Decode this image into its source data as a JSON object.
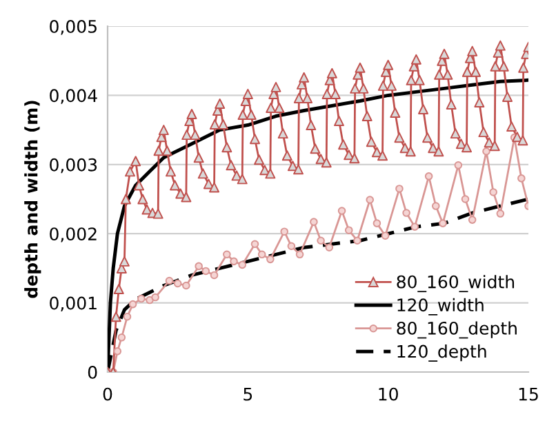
{
  "chart_data": {
    "type": "line",
    "ylabel": "depth and width (m)",
    "xlim": [
      0,
      15
    ],
    "xticks": [
      0,
      5,
      10,
      15
    ],
    "ylim": [
      0,
      0.005
    ],
    "yticks": [
      {
        "value": 0,
        "label": "0"
      },
      {
        "value": 0.001,
        "label": "0,001"
      },
      {
        "value": 0.002,
        "label": "0,002"
      },
      {
        "value": 0.003,
        "label": "0,003"
      },
      {
        "value": 0.004,
        "label": "0,004"
      },
      {
        "value": 0.005,
        "label": "0,005"
      }
    ],
    "grid": "y",
    "legend": "bottom right",
    "series": [
      {
        "name": "80_160_width",
        "color": "#c0504d",
        "marker": "triangle",
        "line_style": "solid",
        "x": [
          0,
          0.2,
          0.3,
          0.4,
          0.5,
          0.6,
          0.65,
          0.8,
          1.0,
          1.12,
          1.25,
          1.4,
          1.6,
          1.8,
          1.82,
          1.92,
          2,
          2.12,
          2.25,
          2.4,
          2.6,
          2.8,
          2.82,
          2.92,
          3,
          3.12,
          3.25,
          3.4,
          3.6,
          3.8,
          3.82,
          3.92,
          4,
          4.12,
          4.25,
          4.4,
          4.6,
          4.8,
          4.82,
          4.92,
          5,
          5.12,
          5.25,
          5.4,
          5.6,
          5.8,
          5.82,
          5.92,
          6,
          6.12,
          6.25,
          6.4,
          6.6,
          6.8,
          6.82,
          6.92,
          7,
          7.12,
          7.25,
          7.4,
          7.6,
          7.8,
          7.82,
          7.92,
          8,
          8.12,
          8.25,
          8.4,
          8.6,
          8.8,
          8.82,
          8.92,
          9,
          9.12,
          9.25,
          9.4,
          9.6,
          9.8,
          9.82,
          9.92,
          10,
          10.12,
          10.25,
          10.4,
          10.6,
          10.8,
          10.82,
          10.92,
          11,
          11.12,
          11.25,
          11.4,
          11.6,
          11.8,
          11.82,
          11.92,
          12,
          12.12,
          12.25,
          12.4,
          12.6,
          12.8,
          12.82,
          12.92,
          13,
          13.12,
          13.25,
          13.4,
          13.6,
          13.8,
          13.82,
          13.92,
          14,
          14.12,
          14.25,
          14.4,
          14.6,
          14.8,
          14.82,
          14.92,
          15
        ],
        "values": [
          0,
          0,
          0.0008,
          0.0012,
          0.0015,
          0.0016,
          0.0025,
          0.0029,
          0.00305,
          0.0027,
          0.0025,
          0.00235,
          0.0023,
          0.00229,
          0.0032,
          0.0034,
          0.0035,
          0.0032,
          0.0029,
          0.0027,
          0.00258,
          0.00253,
          0.00343,
          0.00363,
          0.00373,
          0.00343,
          0.0031,
          0.00287,
          0.00272,
          0.00267,
          0.00358,
          0.00378,
          0.00388,
          0.00358,
          0.00325,
          0.00299,
          0.00284,
          0.00279,
          0.00372,
          0.00392,
          0.00402,
          0.00372,
          0.00337,
          0.00307,
          0.00292,
          0.00287,
          0.00382,
          0.00402,
          0.00412,
          0.00382,
          0.00345,
          0.00313,
          0.00298,
          0.00293,
          0.00396,
          0.00416,
          0.00426,
          0.00396,
          0.00357,
          0.00323,
          0.00308,
          0.00303,
          0.00402,
          0.00422,
          0.00432,
          0.00402,
          0.00363,
          0.00329,
          0.00314,
          0.00309,
          0.0041,
          0.0043,
          0.0044,
          0.0041,
          0.0037,
          0.00333,
          0.00318,
          0.00313,
          0.00414,
          0.00434,
          0.00444,
          0.00414,
          0.00375,
          0.00339,
          0.00324,
          0.00319,
          0.00422,
          0.00442,
          0.00452,
          0.00422,
          0.0038,
          0.00339,
          0.00324,
          0.00319,
          0.0043,
          0.0045,
          0.0046,
          0.0043,
          0.00387,
          0.00345,
          0.0033,
          0.00325,
          0.00434,
          0.00454,
          0.00464,
          0.00434,
          0.0039,
          0.00347,
          0.00332,
          0.00327,
          0.00442,
          0.00462,
          0.00472,
          0.00442,
          0.00398,
          0.00355,
          0.0034,
          0.00335,
          0.0044,
          0.0046,
          0.0047
        ]
      },
      {
        "name": "120_width",
        "color": "#000000",
        "line_style": "solid",
        "x": [
          0,
          0.1,
          0.2,
          0.35,
          0.6,
          1,
          1.5,
          2,
          3,
          4,
          5,
          6,
          7,
          8,
          9,
          10,
          11,
          12,
          13,
          14,
          15
        ],
        "values": [
          0,
          0.001,
          0.0015,
          0.002,
          0.0024,
          0.0027,
          0.0029,
          0.0031,
          0.0033,
          0.0035,
          0.00357,
          0.0037,
          0.00378,
          0.00385,
          0.00392,
          0.004,
          0.00405,
          0.0041,
          0.00415,
          0.0042,
          0.00422
        ]
      },
      {
        "name": "80_160_depth",
        "color": "#d99694",
        "marker": "circle",
        "line_style": "solid",
        "x": [
          0,
          0.2,
          0.35,
          0.5,
          0.7,
          0.9,
          1.2,
          1.5,
          1.7,
          2.2,
          2.5,
          2.8,
          3.25,
          3.5,
          3.8,
          4.25,
          4.5,
          4.8,
          5.25,
          5.5,
          5.8,
          6.3,
          6.55,
          6.85,
          7.35,
          7.6,
          7.9,
          8.35,
          8.6,
          8.9,
          9.35,
          9.6,
          9.9,
          10.4,
          10.65,
          10.95,
          11.45,
          11.7,
          11.95,
          12.5,
          12.75,
          13,
          13.5,
          13.75,
          14,
          14.5,
          14.75,
          15
        ],
        "values": [
          0,
          0,
          0.0003,
          0.0005,
          0.0008,
          0.00098,
          0.00106,
          0.00104,
          0.00108,
          0.00132,
          0.00128,
          0.00125,
          0.00153,
          0.00146,
          0.0014,
          0.0017,
          0.0016,
          0.00155,
          0.00185,
          0.0017,
          0.00163,
          0.00203,
          0.00182,
          0.0017,
          0.00217,
          0.0019,
          0.0018,
          0.00233,
          0.00205,
          0.0019,
          0.00249,
          0.00215,
          0.00197,
          0.00265,
          0.0023,
          0.0021,
          0.00283,
          0.0024,
          0.00215,
          0.00299,
          0.0025,
          0.0022,
          0.00319,
          0.0026,
          0.00229,
          0.00339,
          0.0028,
          0.0024
        ]
      },
      {
        "name": "120_depth",
        "color": "#000000",
        "line_style": "dashed",
        "x": [
          0,
          0.3,
          0.6,
          1,
          2,
          3,
          4,
          5,
          6,
          7,
          8,
          9,
          10,
          11,
          12,
          13,
          14,
          15
        ],
        "values": [
          0,
          0.0006,
          0.0009,
          0.00105,
          0.00125,
          0.0014,
          0.0015,
          0.0016,
          0.0017,
          0.0018,
          0.00185,
          0.0019,
          0.002,
          0.0021,
          0.00215,
          0.0023,
          0.0024,
          0.0025
        ]
      }
    ]
  }
}
